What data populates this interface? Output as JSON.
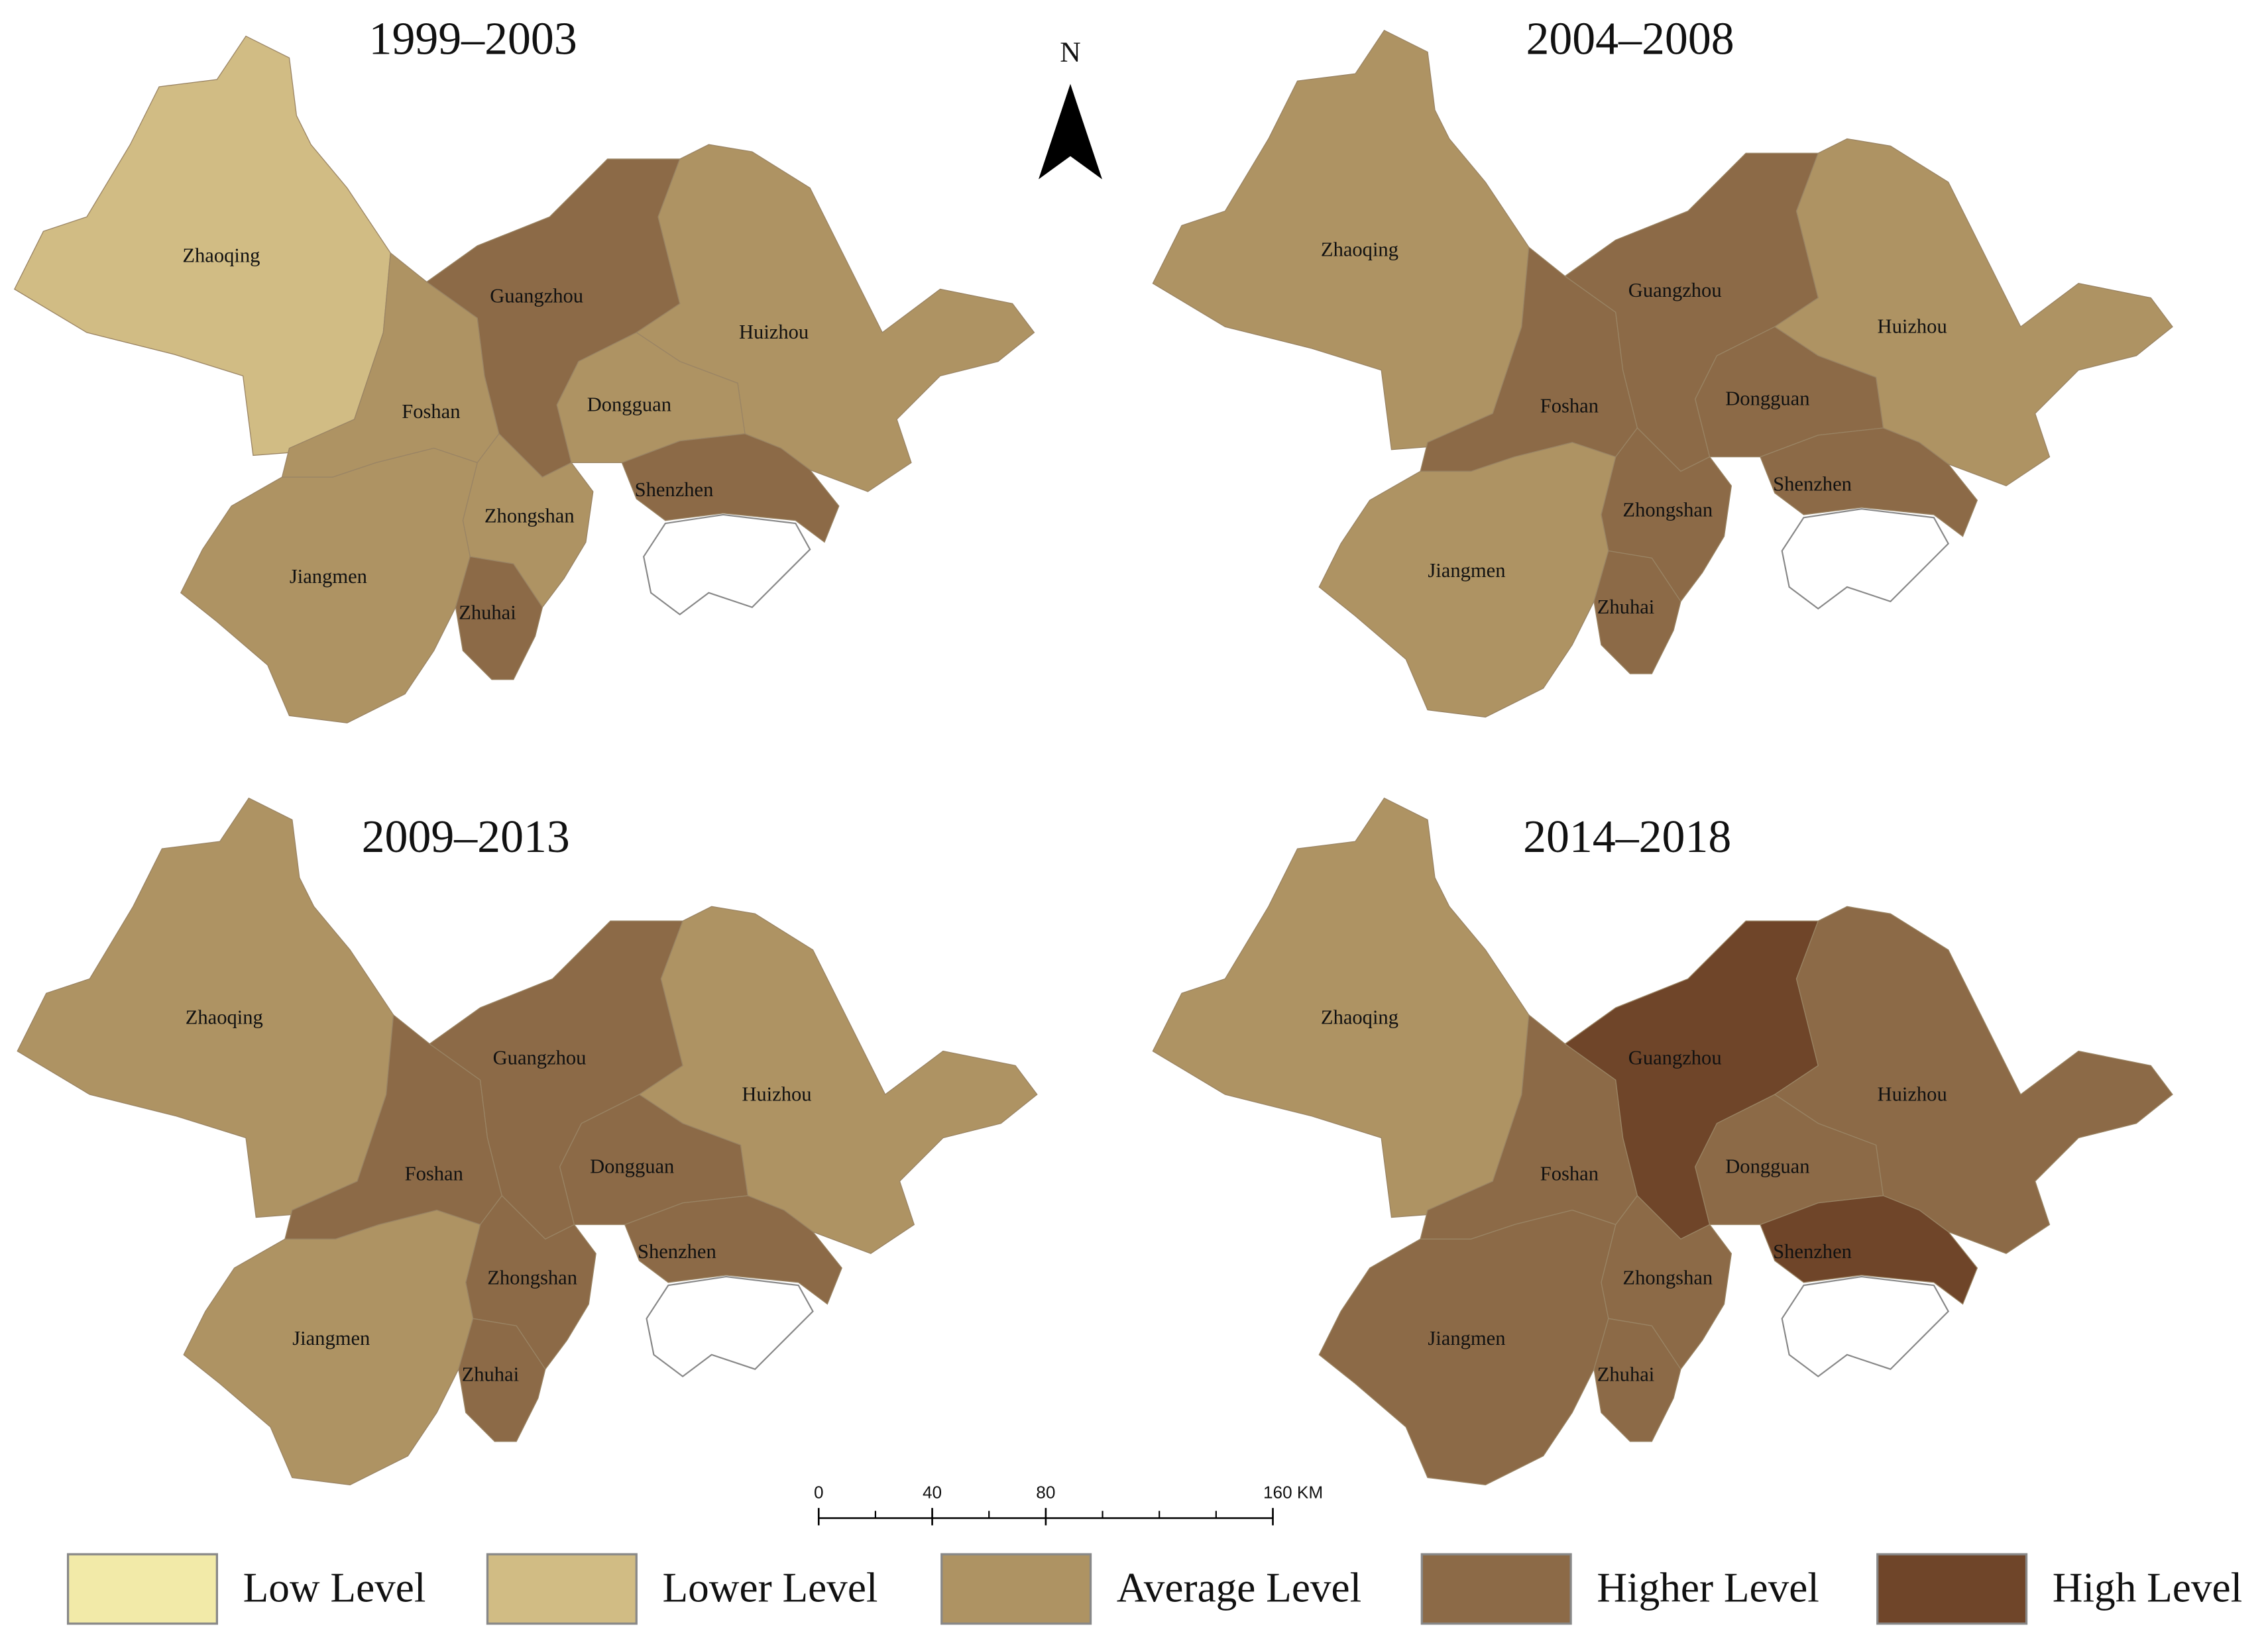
{
  "north_label": "N",
  "legend": [
    {
      "label": "Low Level",
      "color": "#f2eaa8"
    },
    {
      "label": "Lower Level",
      "color": "#d1bc84"
    },
    {
      "label": "Average Level",
      "color": "#ae9363"
    },
    {
      "label": "Higher Level",
      "color": "#8c6a47"
    },
    {
      "label": "High Level",
      "color": "#6f4529"
    }
  ],
  "scale_bar": {
    "ticks": [
      0,
      40,
      80,
      {
        "value": 160,
        "label": "160 KM"
      }
    ]
  },
  "panels": [
    {
      "title": "1999–2003",
      "cities": [
        {
          "name": "Zhaoqing",
          "level": 1
        },
        {
          "name": "Foshan",
          "level": 2
        },
        {
          "name": "Guangzhou",
          "level": 3
        },
        {
          "name": "Huizhou",
          "level": 2
        },
        {
          "name": "Dongguan",
          "level": 2
        },
        {
          "name": "Shenzhen",
          "level": 3
        },
        {
          "name": "Zhongshan",
          "level": 2
        },
        {
          "name": "Jiangmen",
          "level": 2
        },
        {
          "name": "Zhuhai",
          "level": 3
        }
      ]
    },
    {
      "title": "2004–2008",
      "cities": [
        {
          "name": "Zhaoqing",
          "level": 2
        },
        {
          "name": "Foshan",
          "level": 3
        },
        {
          "name": "Guangzhou",
          "level": 3
        },
        {
          "name": "Huizhou",
          "level": 2
        },
        {
          "name": "Dongguan",
          "level": 3
        },
        {
          "name": "Shenzhen",
          "level": 3
        },
        {
          "name": "Zhongshan",
          "level": 3
        },
        {
          "name": "Jiangmen",
          "level": 2
        },
        {
          "name": "Zhuhai",
          "level": 3
        }
      ]
    },
    {
      "title": "2009–2013",
      "cities": [
        {
          "name": "Zhaoqing",
          "level": 2
        },
        {
          "name": "Foshan",
          "level": 3
        },
        {
          "name": "Guangzhou",
          "level": 3
        },
        {
          "name": "Huizhou",
          "level": 2
        },
        {
          "name": "Dongguan",
          "level": 3
        },
        {
          "name": "Shenzhen",
          "level": 3
        },
        {
          "name": "Zhongshan",
          "level": 3
        },
        {
          "name": "Jiangmen",
          "level": 2
        },
        {
          "name": "Zhuhai",
          "level": 3
        }
      ]
    },
    {
      "title": "2014–2018",
      "cities": [
        {
          "name": "Zhaoqing",
          "level": 2
        },
        {
          "name": "Foshan",
          "level": 3
        },
        {
          "name": "Guangzhou",
          "level": 4
        },
        {
          "name": "Huizhou",
          "level": 3
        },
        {
          "name": "Dongguan",
          "level": 3
        },
        {
          "name": "Shenzhen",
          "level": 4
        },
        {
          "name": "Zhongshan",
          "level": 3
        },
        {
          "name": "Jiangmen",
          "level": 3
        },
        {
          "name": "Zhuhai",
          "level": 3
        }
      ]
    }
  ]
}
